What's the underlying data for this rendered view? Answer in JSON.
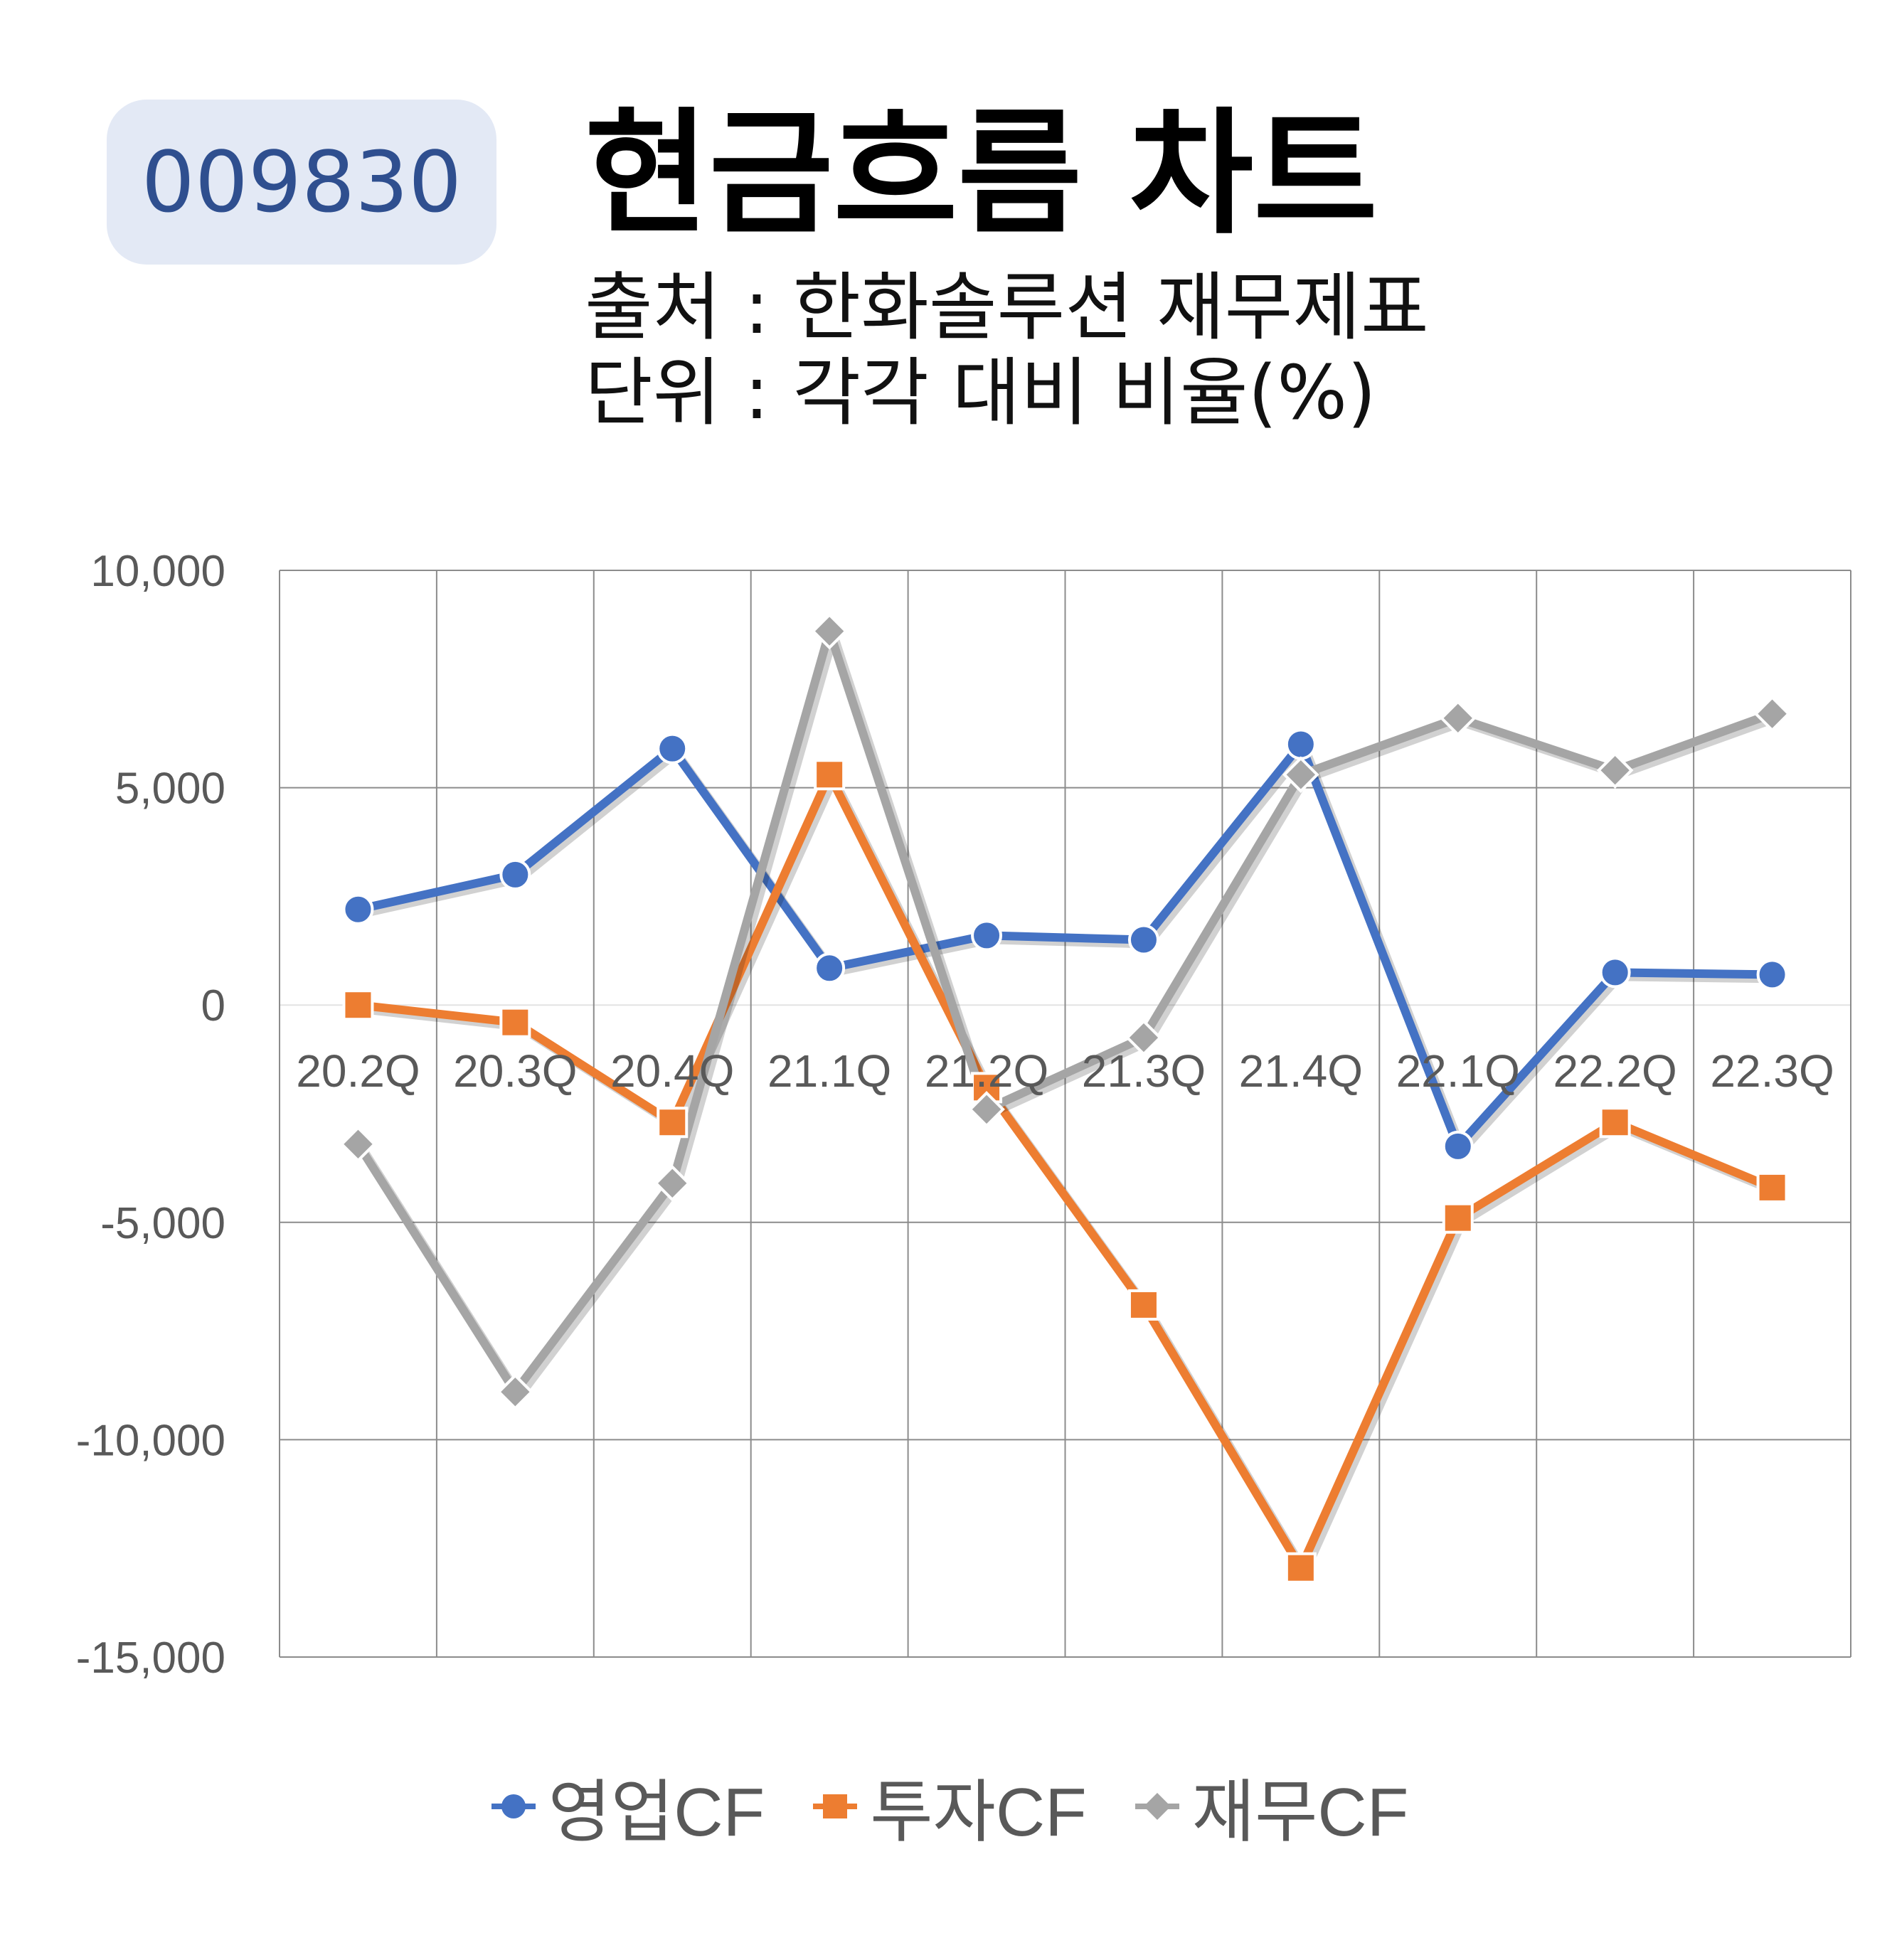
{
  "badge": "009830",
  "title": "현금흐름 차트",
  "source_line": "출처 : 한화솔루션 재무제표",
  "unit_line": "단위 : 각각 대비 비율(%)",
  "chart_data": {
    "type": "line",
    "categories": [
      "20.2Q",
      "20.3Q",
      "20.4Q",
      "21.1Q",
      "21.2Q",
      "21.3Q",
      "21.4Q",
      "22.1Q",
      "22.2Q",
      "22.3Q"
    ],
    "ylim": [
      -15000,
      10000
    ],
    "yticks": [
      10000,
      5000,
      0,
      -5000,
      -10000,
      -15000
    ],
    "ytick_labels": [
      "10,000",
      "5,000",
      "0",
      "-5,000",
      "-10,000",
      "-15,000"
    ],
    "grid": true,
    "legend_position": "bottom",
    "series": [
      {
        "name": "영업CF",
        "color": "#4472c4",
        "marker": "circle",
        "values": [
          2200,
          3000,
          5900,
          850,
          1600,
          1500,
          6000,
          -3250,
          750,
          700
        ]
      },
      {
        "name": "투자CF",
        "color": "#ed7d31",
        "marker": "square",
        "values": [
          0,
          -400,
          -2700,
          5300,
          -1900,
          -6900,
          -12950,
          -4900,
          -2700,
          -4200
        ]
      },
      {
        "name": "재무CF",
        "color": "#a5a5a5",
        "marker": "diamond",
        "values": [
          -3200,
          -8900,
          -4100,
          8600,
          -2400,
          -750,
          5300,
          6600,
          5400,
          6700
        ]
      }
    ]
  }
}
